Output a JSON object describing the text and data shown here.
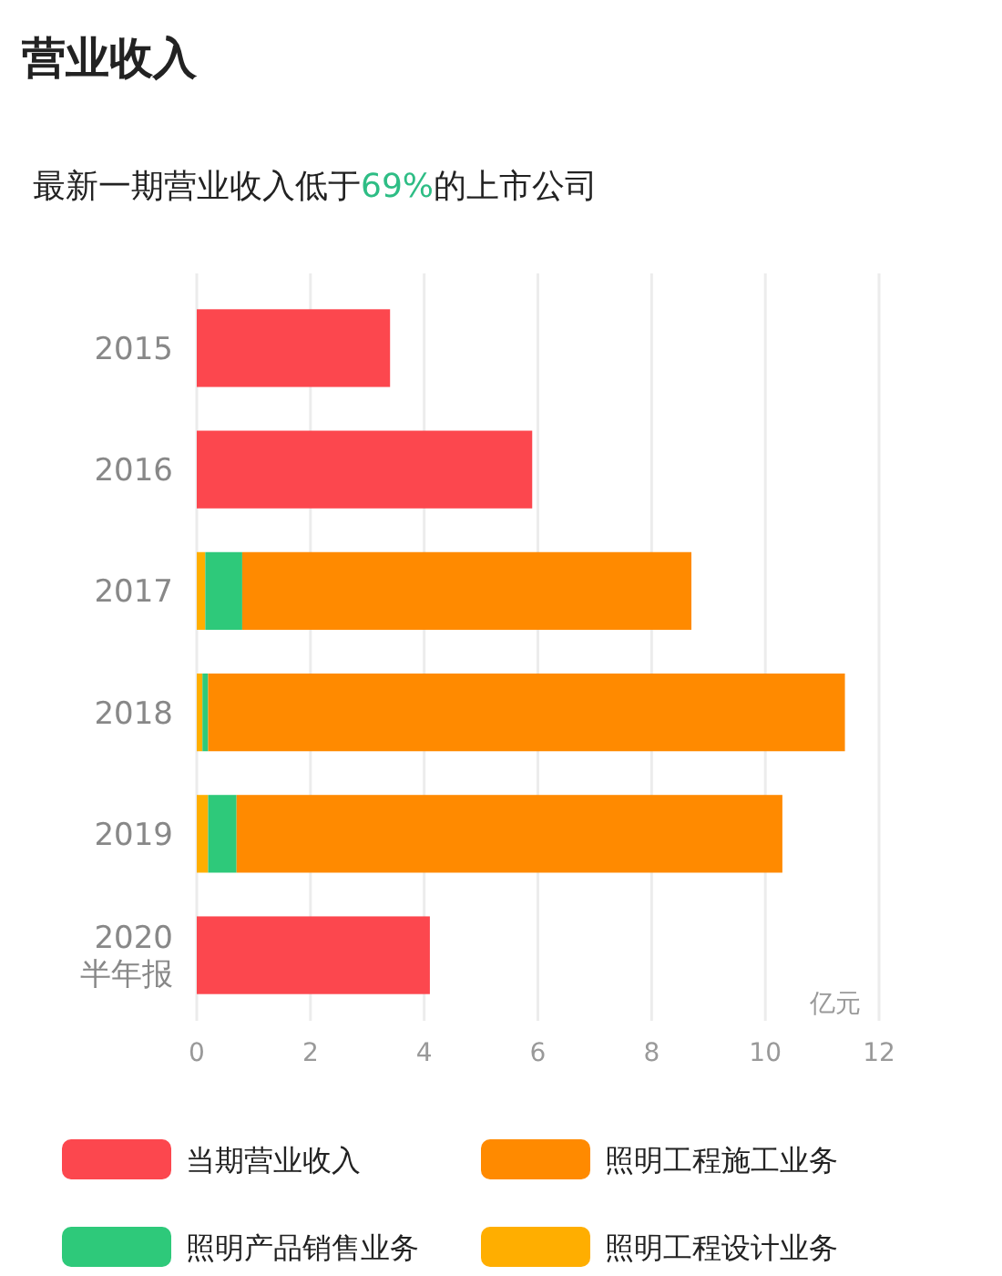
{
  "chart_data": {
    "type": "bar",
    "orientation": "horizontal",
    "stacked": true,
    "title": "营业收入",
    "subtitle": "最新一期营业收入低于69%的上市公司",
    "xlabel": "亿元",
    "categories": [
      "2015",
      "2016",
      "2017",
      "2018",
      "2019",
      "2020\n半年报"
    ],
    "series": [
      {
        "name": "当期营业收入",
        "color": "#fc474e",
        "values": [
          3.4,
          5.9,
          null,
          null,
          null,
          4.1
        ]
      },
      {
        "name": "照明工程设计业务",
        "color": "#ffae00",
        "values": [
          null,
          null,
          0.15,
          0.1,
          0.2,
          null
        ]
      },
      {
        "name": "照明产品销售业务",
        "color": "#2ec97a",
        "values": [
          null,
          null,
          0.65,
          0.1,
          0.5,
          null
        ]
      },
      {
        "name": "照明工程施工业务",
        "color": "#ff8a00",
        "values": [
          null,
          null,
          7.9,
          11.2,
          9.6,
          null
        ]
      }
    ],
    "xlim": [
      0,
      12
    ],
    "xticks": [
      0,
      2,
      4,
      6,
      8,
      10,
      12
    ],
    "grid": "x",
    "legend": "bottom"
  }
}
